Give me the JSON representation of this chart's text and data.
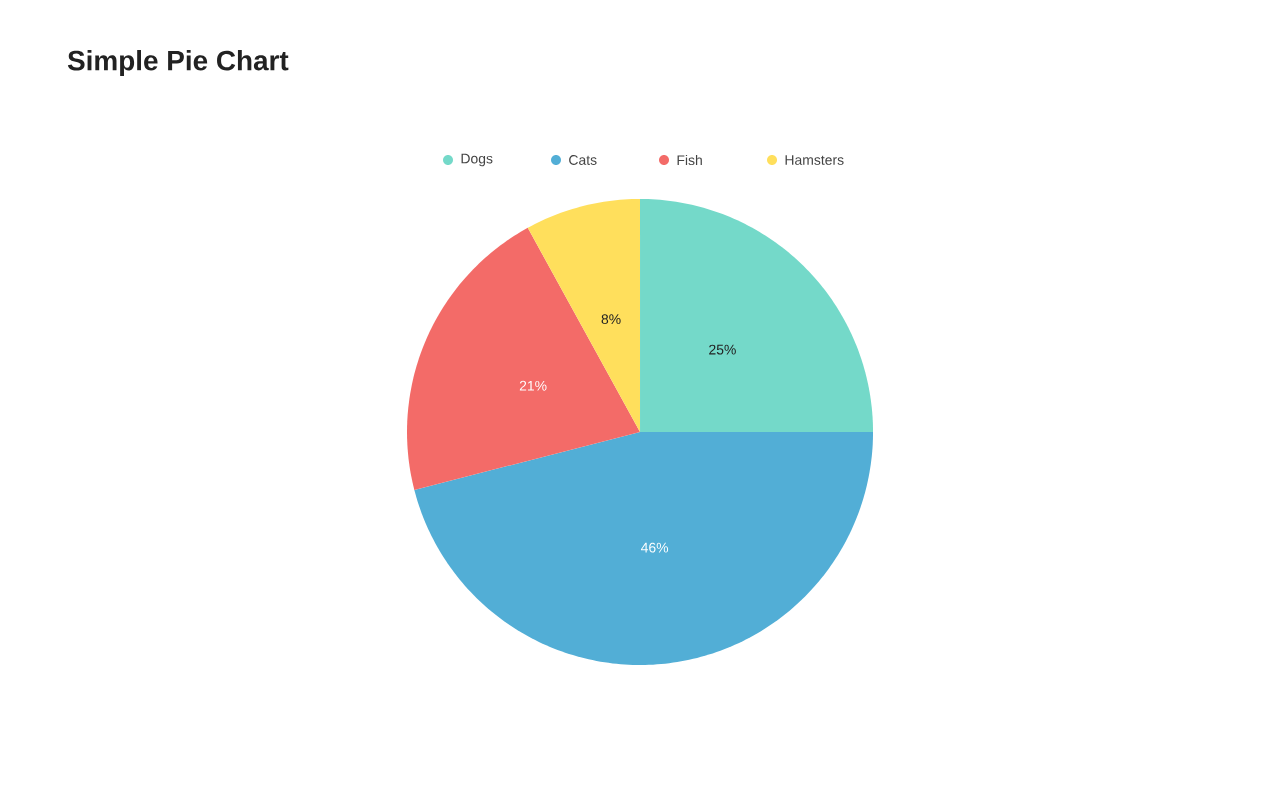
{
  "chart_data": {
    "type": "pie",
    "title": "Simple Pie Chart",
    "categories": [
      "Dogs",
      "Cats",
      "Fish",
      "Hamsters"
    ],
    "values": [
      25,
      46,
      21,
      8
    ],
    "value_labels": [
      "25%",
      "46%",
      "21%",
      "8%"
    ],
    "colors": [
      "#74d9c9",
      "#52aed6",
      "#f36b68",
      "#ffdf5c"
    ],
    "legend": "top"
  }
}
